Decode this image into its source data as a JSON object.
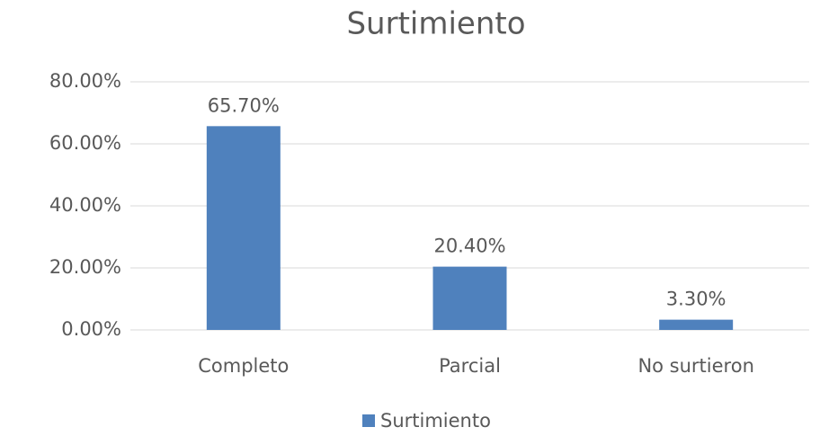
{
  "chart_data": {
    "type": "bar",
    "title": "Surtimiento",
    "categories": [
      "Completo",
      "Parcial",
      "No surtieron"
    ],
    "series": [
      {
        "name": "Surtimiento",
        "color": "#4f81bd",
        "values": [
          65.7,
          20.4,
          3.3
        ],
        "value_labels": [
          "65.70%",
          "20.40%",
          "3.30%"
        ]
      }
    ],
    "ylim": [
      0,
      80
    ],
    "yticks": [
      {
        "value": 0,
        "label": "0.00%"
      },
      {
        "value": 20,
        "label": "20.00%"
      },
      {
        "value": 40,
        "label": "40.00%"
      },
      {
        "value": 60,
        "label": "60.00%"
      },
      {
        "value": 80,
        "label": "80.00%"
      }
    ],
    "grid": true,
    "legend": "bottom"
  }
}
